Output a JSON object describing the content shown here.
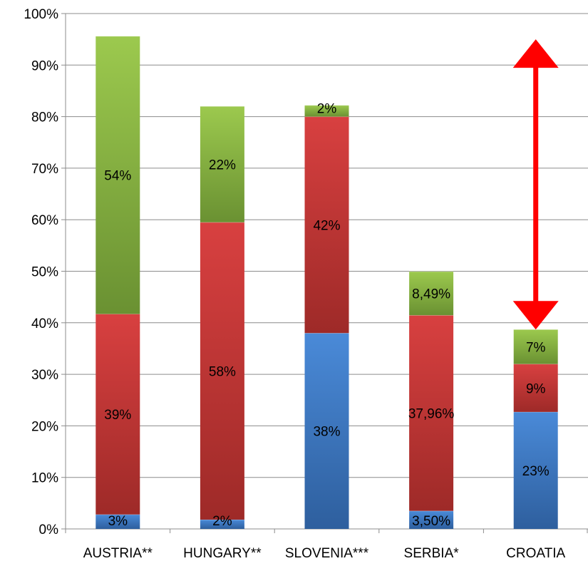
{
  "chart_data": {
    "type": "bar",
    "stacked": true,
    "categories": [
      "AUSTRIA**",
      "HUNGARY**",
      "SLOVENIA***",
      "SERBIA*",
      "CROATIA"
    ],
    "series": [
      {
        "color": "#3d7cc9",
        "values": [
          2.8,
          1.8,
          38,
          3.5,
          22.7
        ],
        "labels": [
          "3%",
          "2%",
          "38%",
          "3,50%",
          "23%"
        ]
      },
      {
        "color": "#c8353a",
        "values": [
          38.9,
          57.7,
          42,
          37.96,
          9.3
        ],
        "labels": [
          "39%",
          "58%",
          "42%",
          "37,96%",
          "9%"
        ]
      },
      {
        "color": "#86b440",
        "values": [
          53.9,
          22.5,
          2.2,
          8.49,
          6.7
        ],
        "labels": [
          "54%",
          "22%",
          "2%",
          "8,49%",
          "7%"
        ]
      }
    ],
    "yticks": [
      "0%",
      "10%",
      "20%",
      "30%",
      "40%",
      "50%",
      "60%",
      "70%",
      "80%",
      "90%",
      "100%"
    ],
    "ylim": [
      0,
      100
    ],
    "grid": true,
    "annotation": {
      "type": "double-arrow",
      "color": "#ff0000",
      "x_category": "CROATIA",
      "y_range": [
        38.7,
        95
      ]
    }
  }
}
